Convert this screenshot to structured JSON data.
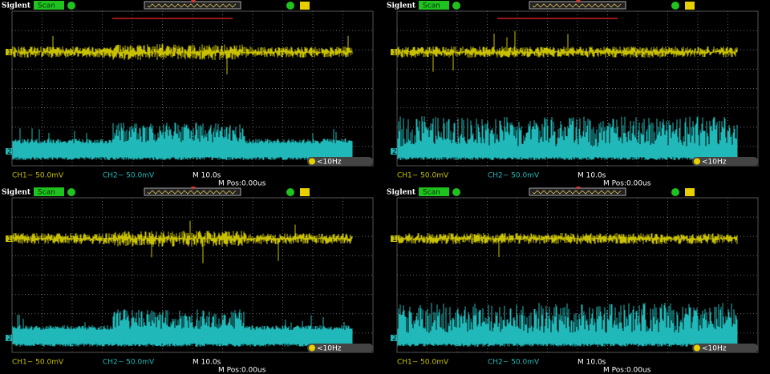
{
  "panels": [
    {
      "brand": "Siglent",
      "mode": "Scan",
      "ch1_marker": "1",
      "ch2_marker": "2",
      "trigger_freq": "<10Hz",
      "ch1_scale": "CH1~ 50.0mV",
      "ch2_scale": "CH2~ 50.0mV",
      "timebase": "M 10.0s",
      "m_pos": "M Pos:0.00us"
    },
    {
      "brand": "Siglent",
      "mode": "Scan",
      "ch1_marker": "1",
      "ch2_marker": "2",
      "trigger_freq": "<10Hz",
      "ch1_scale": "CH1~ 50.0mV",
      "ch2_scale": "CH2~ 50.0mV",
      "timebase": "M 10.0s",
      "m_pos": "M Pos:0.00us"
    },
    {
      "brand": "Siglent",
      "mode": "Scan",
      "ch1_marker": "1",
      "ch2_marker": "2",
      "trigger_freq": "<10Hz",
      "ch1_scale": "CH1~ 50.0mV",
      "ch2_scale": "CH2~ 50.0mV",
      "timebase": "M 10.0s",
      "m_pos": "M Pos:0.00us"
    },
    {
      "brand": "Siglent",
      "mode": "Scan",
      "ch1_marker": "1",
      "ch2_marker": "2",
      "trigger_freq": "<10Hz",
      "ch1_scale": "CH1~ 50.0mV",
      "ch2_scale": "CH2~ 50.0mV",
      "timebase": "M 10.0s",
      "m_pos": "M Pos:0.00us"
    }
  ]
}
